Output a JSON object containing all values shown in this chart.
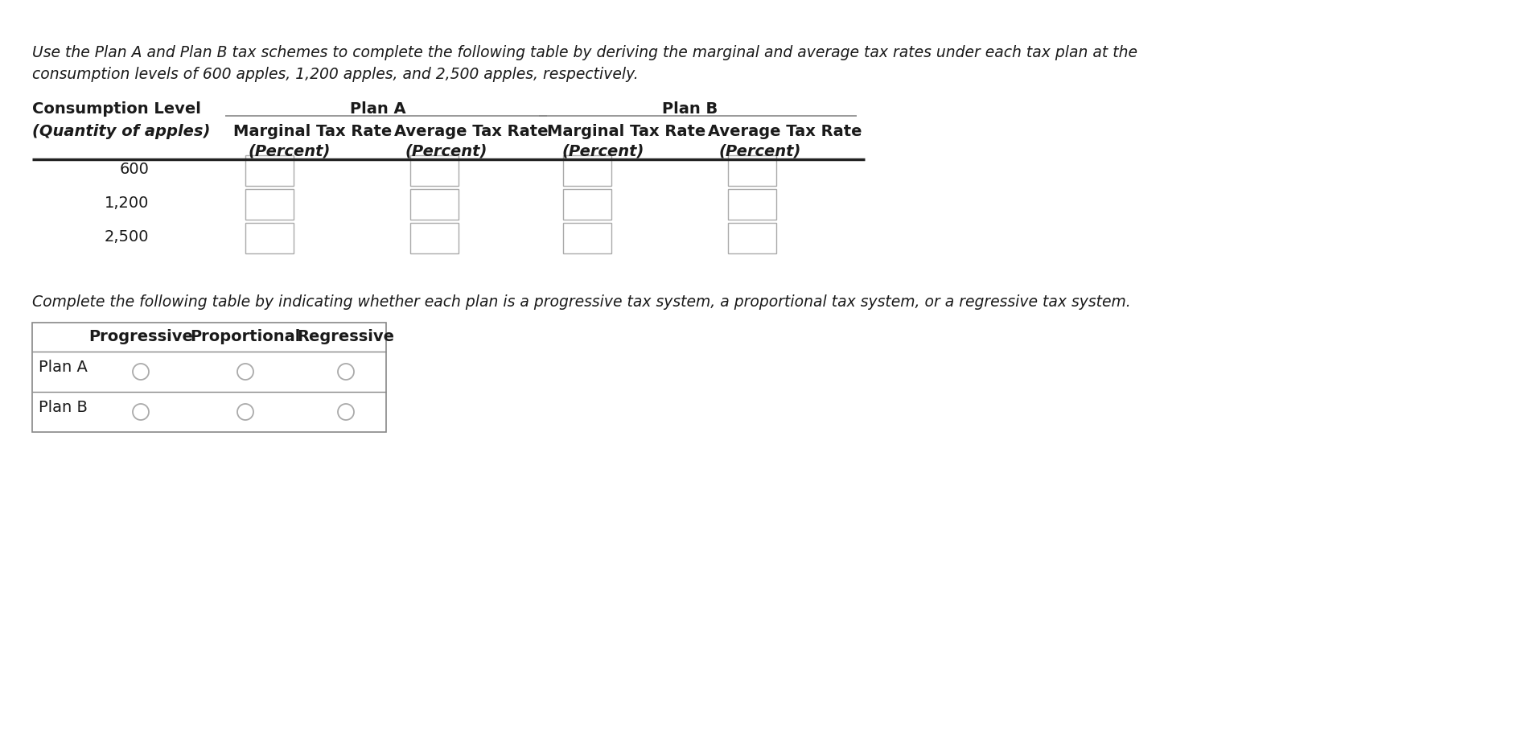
{
  "bg_color": "#ffffff",
  "intro_line1": "Use the Plan A and Plan B tax schemes to complete the following table by deriving the marginal and average tax rates under each tax plan at the",
  "intro_line2": "consumption levels of 600 apples, 1,200 apples, and 2,500 apples, respectively.",
  "col0_header1": "Consumption Level",
  "col0_header2": "(Quantity of apples)",
  "plan_a_header": "Plan A",
  "plan_b_header": "Plan B",
  "marginal_label": "Marginal Tax Rate",
  "average_label": "Average Tax Rate",
  "percent_label": "(Percent)",
  "rows": [
    "600",
    "1,200",
    "2,500"
  ],
  "second_text": "Complete the following table by indicating whether each plan is a progressive tax system, a proportional tax system, or a regressive tax system.",
  "table2_headers": [
    "Progressive",
    "Proportional",
    "Regressive"
  ],
  "table2_rows": [
    "Plan A",
    "Plan B"
  ]
}
